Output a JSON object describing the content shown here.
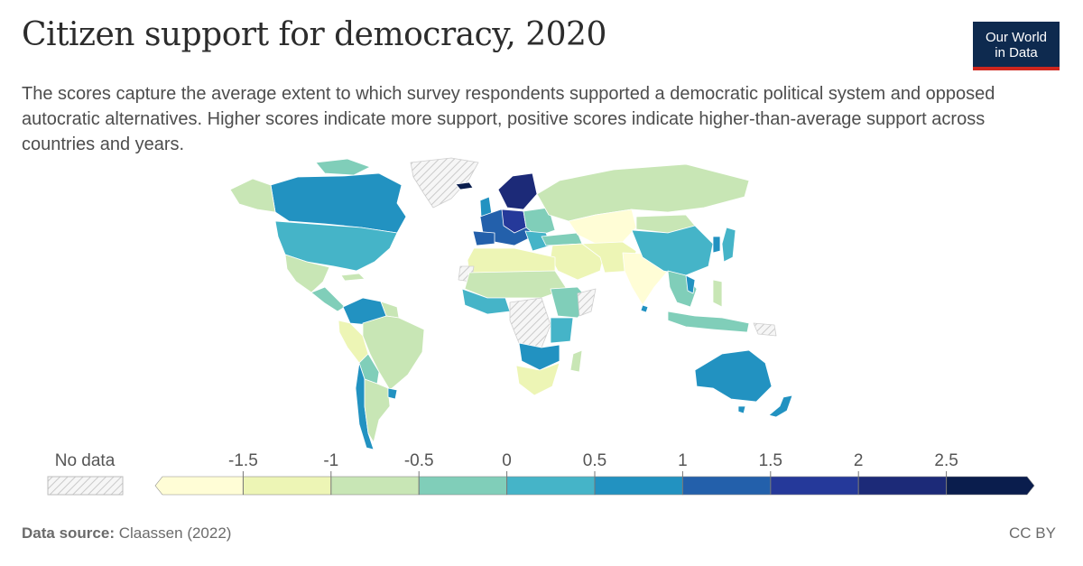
{
  "title": "Citizen support for democracy, 2020",
  "subtitle": "The scores capture the average extent to which survey respondents supported a democratic political system and opposed autocratic alternatives. Higher scores indicate more support, positive scores indicate higher-than-average support across countries and years.",
  "logo": {
    "line1": "Our World",
    "line2": "in Data"
  },
  "legend": {
    "no_data_label": "No data",
    "ticks": [
      "-1.5",
      "-1",
      "-0.5",
      "0",
      "0.5",
      "1",
      "1.5",
      "2",
      "2.5"
    ],
    "colors": [
      "#fffdd6",
      "#edf5b5",
      "#c8e6b5",
      "#80ceb9",
      "#45b4c8",
      "#2292c1",
      "#2360ab",
      "#25399a",
      "#1c2a78",
      "#0a1d4d"
    ]
  },
  "footer": {
    "source_label": "Data source:",
    "source_value": "Claassen (2022)",
    "license": "CC BY"
  },
  "colors": {
    "title": "#2c2c2c",
    "logo_bg": "#0e2a4f",
    "logo_accent": "#ce261e"
  }
}
